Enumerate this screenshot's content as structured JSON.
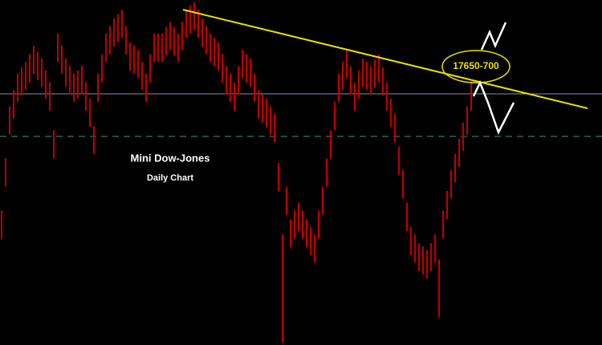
{
  "chart_data": {
    "type": "hilo",
    "title": "Mini Dow-Jones",
    "subtitle": "Daily Chart",
    "annotation": "17650-700",
    "color": "#c00000",
    "ylim": [
      15280,
      18460
    ],
    "highs": [
      16520,
      17000,
      17480,
      17630,
      17780,
      17840,
      17890,
      17960,
      18040,
      17980,
      17920,
      17810,
      17700,
      17260,
      18150,
      18040,
      17920,
      17850,
      17780,
      17810,
      17850,
      17700,
      17550,
      17300,
      17780,
      17960,
      18150,
      18220,
      18290,
      18330,
      18370,
      18220,
      18070,
      18040,
      18000,
      17890,
      17780,
      17960,
      18150,
      18150,
      18150,
      18210,
      18260,
      18210,
      18150,
      18260,
      18370,
      18410,
      18440,
      18370,
      18290,
      18220,
      18150,
      18110,
      18070,
      17960,
      17850,
      17780,
      17700,
      17850,
      18000,
      17960,
      17920,
      17780,
      17630,
      17590,
      17550,
      17480,
      17410,
      16960,
      16300,
      16740,
      16440,
      16520,
      16590,
      16520,
      16440,
      16370,
      16300,
      16520,
      16740,
      17000,
      17260,
      17520,
      17780,
      17890,
      18000,
      17850,
      17700,
      17810,
      17920,
      17890,
      17850,
      17910,
      17960,
      17840,
      17700,
      17550,
      17410,
      17110,
      16890,
      16590,
      16370,
      16300,
      16220,
      16190,
      16150,
      16220,
      16300,
      16070,
      16520,
      16700,
      16890,
      17040,
      17180,
      17330,
      17480,
      17700
    ],
    "lows": [
      16260,
      16740,
      17220,
      17370,
      17520,
      17580,
      17630,
      17700,
      17780,
      17720,
      17660,
      17550,
      17440,
      17000,
      17890,
      17780,
      17660,
      17590,
      17520,
      17550,
      17590,
      17440,
      17290,
      17040,
      17520,
      17700,
      17890,
      17960,
      18030,
      18070,
      18110,
      17960,
      17810,
      17780,
      17740,
      17630,
      17520,
      17700,
      17890,
      17890,
      17890,
      17950,
      18000,
      17950,
      17890,
      18000,
      18110,
      18150,
      18180,
      18110,
      18030,
      17960,
      17890,
      17850,
      17810,
      17700,
      17590,
      17520,
      17440,
      17590,
      17740,
      17700,
      17660,
      17520,
      17370,
      17330,
      17290,
      17220,
      17150,
      16700,
      15300,
      16480,
      16180,
      16260,
      16330,
      16260,
      16180,
      16110,
      16040,
      16260,
      16480,
      16740,
      17000,
      17260,
      17520,
      17630,
      17740,
      17590,
      17440,
      17550,
      17660,
      17630,
      17590,
      17650,
      17700,
      17580,
      17440,
      17290,
      17150,
      16850,
      16630,
      16330,
      16110,
      16040,
      15960,
      15930,
      15890,
      15960,
      16040,
      15540,
      16260,
      16440,
      16630,
      16780,
      16920,
      17070,
      17220,
      17440
    ]
  }
}
